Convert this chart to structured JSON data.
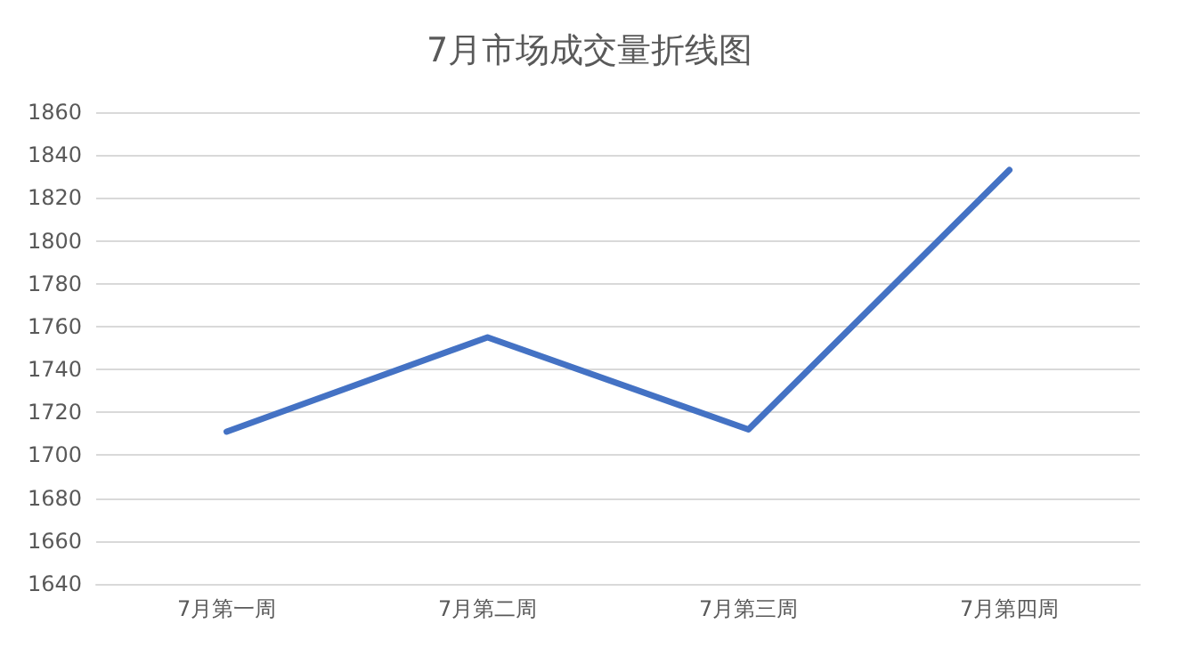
{
  "chart_data": {
    "type": "line",
    "title": "7月市场成交量折线图",
    "categories": [
      "7月第一周",
      "7月第二周",
      "7月第三周",
      "7月第四周"
    ],
    "series": [
      {
        "color": "#4472c4",
        "values": [
          1711,
          1755,
          1712,
          1833
        ]
      }
    ],
    "ylim": [
      1640,
      1860
    ],
    "yticks": [
      1640,
      1660,
      1680,
      1700,
      1720,
      1740,
      1760,
      1780,
      1800,
      1820,
      1840,
      1860
    ],
    "grid": "y",
    "marker": "none",
    "line_style": "solid"
  }
}
